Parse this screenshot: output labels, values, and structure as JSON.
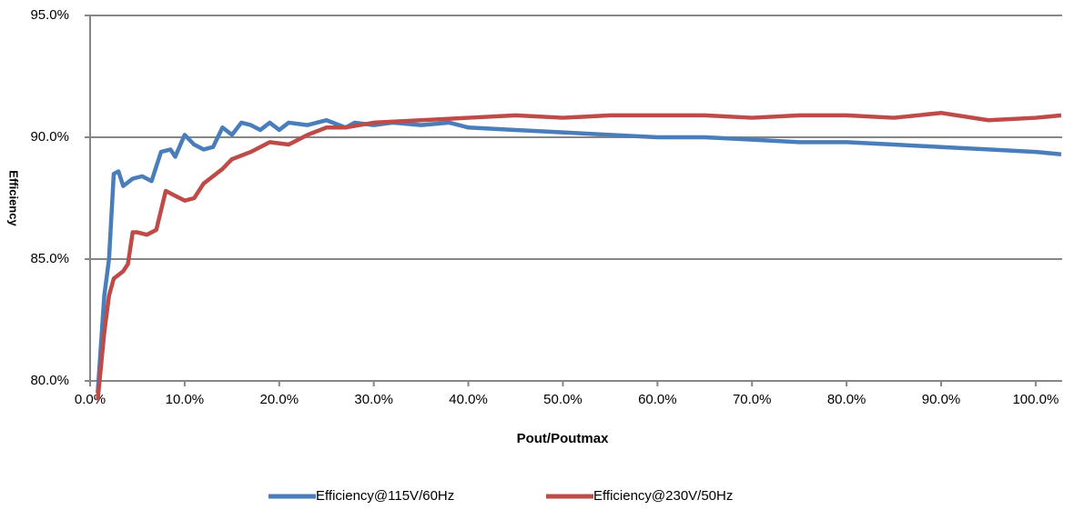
{
  "chart_data": {
    "type": "line",
    "xlabel": "Pout/Poutmax",
    "ylabel": "Efficiency",
    "xlim": [
      0,
      102.8
    ],
    "ylim": [
      80,
      95
    ],
    "xticks": [
      {
        "value": 0,
        "label": "0.0%"
      },
      {
        "value": 10,
        "label": "10.0%"
      },
      {
        "value": 20,
        "label": "20.0%"
      },
      {
        "value": 30,
        "label": "30.0%"
      },
      {
        "value": 40,
        "label": "40.0%"
      },
      {
        "value": 50,
        "label": "50.0%"
      },
      {
        "value": 60,
        "label": "60.0%"
      },
      {
        "value": 70,
        "label": "70.0%"
      },
      {
        "value": 80,
        "label": "80.0%"
      },
      {
        "value": 90,
        "label": "90.0%"
      },
      {
        "value": 100,
        "label": "100.0%"
      }
    ],
    "yticks": [
      {
        "value": 80,
        "label": "80.0%"
      },
      {
        "value": 85,
        "label": "85.0%"
      },
      {
        "value": 90,
        "label": "90.0%"
      },
      {
        "value": 95,
        "label": "95.0%"
      }
    ],
    "grid": true,
    "legend": "bottom",
    "series": [
      {
        "name": "Efficiency@115V/60Hz",
        "color": "#4a7ebb",
        "x": [
          0.8,
          1.5,
          2.0,
          2.5,
          3,
          3.5,
          4.5,
          5.5,
          6.5,
          7.5,
          8.5,
          9,
          10,
          11,
          12,
          13,
          14,
          15,
          16,
          17,
          18,
          19,
          20,
          21,
          23,
          25,
          27,
          28,
          30,
          32,
          35,
          38,
          40,
          45,
          50,
          55,
          60,
          65,
          70,
          75,
          80,
          85,
          90,
          95,
          100,
          102.7
        ],
        "values": [
          79.5,
          83.5,
          85,
          88.5,
          88.6,
          88.0,
          88.3,
          88.4,
          88.2,
          89.4,
          89.5,
          89.2,
          90.1,
          89.7,
          89.5,
          89.6,
          90.4,
          90.1,
          90.6,
          90.5,
          90.3,
          90.6,
          90.3,
          90.6,
          90.5,
          90.7,
          90.4,
          90.6,
          90.5,
          90.6,
          90.5,
          90.6,
          90.4,
          90.3,
          90.2,
          90.1,
          90.0,
          90.0,
          89.9,
          89.8,
          89.8,
          89.7,
          89.6,
          89.5,
          89.4,
          89.3
        ]
      },
      {
        "name": "Efficiency@230V/50Hz",
        "color": "#be4b48",
        "x": [
          0.8,
          1.5,
          2,
          2.5,
          3.5,
          4,
          4.5,
          5,
          6,
          7,
          8,
          9,
          10,
          11,
          12,
          13,
          14,
          15,
          17,
          19,
          21,
          23,
          25,
          27,
          30,
          35,
          40,
          45,
          50,
          55,
          60,
          65,
          70,
          75,
          80,
          85,
          90,
          95,
          100,
          102.7
        ],
        "values": [
          79.2,
          82,
          83.5,
          84.2,
          84.5,
          84.8,
          86.1,
          86.1,
          86.0,
          86.2,
          87.8,
          87.6,
          87.4,
          87.5,
          88.1,
          88.4,
          88.7,
          89.1,
          89.4,
          89.8,
          89.7,
          90.1,
          90.4,
          90.4,
          90.6,
          90.7,
          90.8,
          90.9,
          90.8,
          90.9,
          90.9,
          90.9,
          90.8,
          90.9,
          90.9,
          90.8,
          91.0,
          90.7,
          90.8,
          90.9
        ]
      }
    ]
  }
}
